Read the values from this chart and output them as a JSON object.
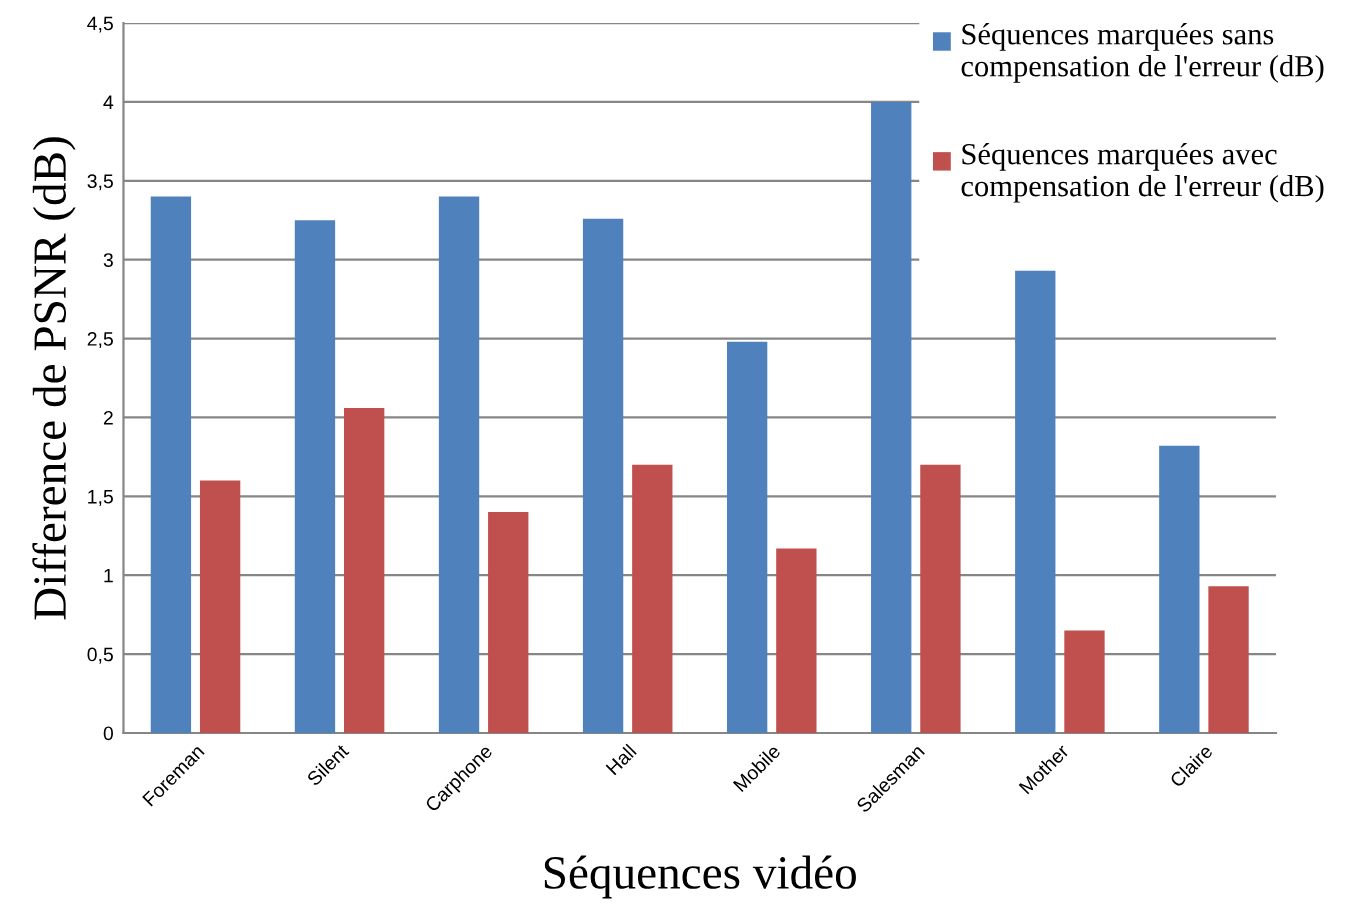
{
  "chart_data": {
    "type": "bar",
    "xlabel": "Séquences vidéo",
    "ylabel": "Difference de PSNR (dB)",
    "categories": [
      "Foreman",
      "Silent",
      "Carphone",
      "Hall",
      "Mobile",
      "Salesman",
      "Mother",
      "Claire"
    ],
    "series": [
      {
        "name": "Séquences marquées sans compensation de l'erreur (dB)",
        "color": "#4f81bd",
        "values": [
          3.4,
          3.25,
          3.4,
          3.26,
          2.48,
          4.0,
          2.93,
          1.82
        ]
      },
      {
        "name": "Séquences marquées avec compensation de l'erreur (dB)",
        "color": "#c0504d",
        "values": [
          1.6,
          2.06,
          1.4,
          1.7,
          1.17,
          1.7,
          0.65,
          0.93
        ]
      }
    ],
    "ylim": [
      0,
      4.5
    ],
    "yticks": [
      0,
      {
        "value": 0.5,
        "label": "0,5"
      },
      1,
      {
        "value": 1.5,
        "label": "1,5"
      },
      2,
      {
        "value": 2.5,
        "label": "2,5"
      },
      3,
      {
        "value": 3.5,
        "label": "3,5"
      },
      4,
      {
        "value": 4.5,
        "label": "4,5"
      }
    ],
    "grid": "y",
    "legend": "top right"
  }
}
